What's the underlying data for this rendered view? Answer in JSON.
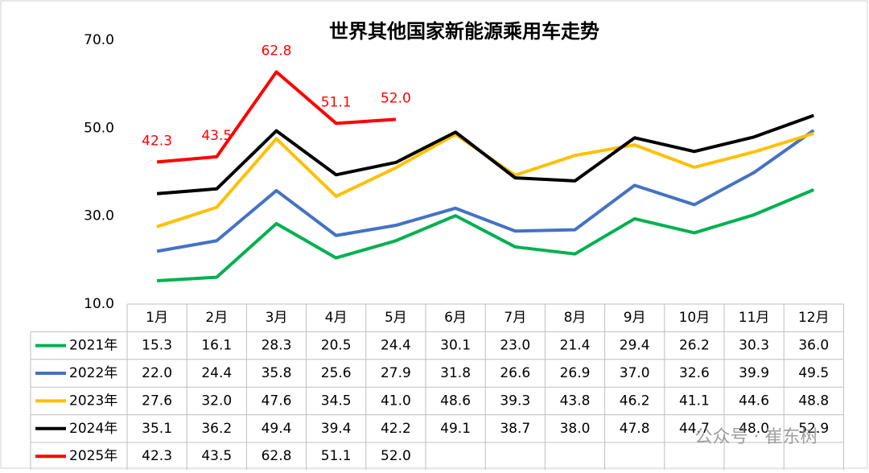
{
  "chart_data": {
    "type": "line",
    "title": "世界其他国家新能源乘用车走势",
    "categories": [
      "1月",
      "2月",
      "3月",
      "4月",
      "5月",
      "6月",
      "7月",
      "8月",
      "9月",
      "10月",
      "11月",
      "12月"
    ],
    "ylim": [
      10,
      70
    ],
    "yticks": [
      {
        "value": 10,
        "label": "10.0"
      },
      {
        "value": 30,
        "label": "30.0"
      },
      {
        "value": 50,
        "label": "50.0"
      },
      {
        "value": 70,
        "label": "70.0"
      }
    ],
    "grid": false,
    "series": [
      {
        "name": "2021年",
        "color": "#00b050",
        "values": [
          15.3,
          16.1,
          28.3,
          20.5,
          24.4,
          30.1,
          23.0,
          21.4,
          29.4,
          26.2,
          30.3,
          36.0
        ],
        "value_labels": [
          "15.3",
          "16.1",
          "28.3",
          "20.5",
          "24.4",
          "30.1",
          "23.0",
          "21.4",
          "29.4",
          "26.2",
          "30.3",
          "36.0"
        ]
      },
      {
        "name": "2022年",
        "color": "#4472c4",
        "values": [
          22.0,
          24.4,
          35.8,
          25.6,
          27.9,
          31.8,
          26.6,
          26.9,
          37.0,
          32.6,
          39.9,
          49.5
        ],
        "value_labels": [
          "22.0",
          "24.4",
          "35.8",
          "25.6",
          "27.9",
          "31.8",
          "26.6",
          "26.9",
          "37.0",
          "32.6",
          "39.9",
          "49.5"
        ]
      },
      {
        "name": "2023年",
        "color": "#ffc000",
        "values": [
          27.6,
          32.0,
          47.6,
          34.5,
          41.0,
          48.6,
          39.3,
          43.8,
          46.2,
          41.1,
          44.6,
          48.8
        ],
        "value_labels": [
          "27.6",
          "32.0",
          "47.6",
          "34.5",
          "41.0",
          "48.6",
          "39.3",
          "43.8",
          "46.2",
          "41.1",
          "44.6",
          "48.8"
        ]
      },
      {
        "name": "2024年",
        "color": "#000000",
        "values": [
          35.1,
          36.2,
          49.4,
          39.4,
          42.2,
          49.1,
          38.7,
          38.0,
          47.8,
          44.7,
          48.0,
          52.9
        ],
        "value_labels": [
          "35.1",
          "36.2",
          "49.4",
          "39.4",
          "42.2",
          "49.1",
          "38.7",
          "38.0",
          "47.8",
          "44.7",
          "48.0",
          "52.9"
        ]
      },
      {
        "name": "2025年",
        "color": "#ff0000",
        "values": [
          42.3,
          43.5,
          62.8,
          51.1,
          52.0,
          null,
          null,
          null,
          null,
          null,
          null,
          null
        ],
        "value_labels": [
          "42.3",
          "43.5",
          "62.8",
          "51.1",
          "52.0",
          null,
          null,
          null,
          null,
          null,
          null,
          null
        ],
        "data_labels": true
      }
    ],
    "watermark": "公众号 · 崔东树"
  }
}
